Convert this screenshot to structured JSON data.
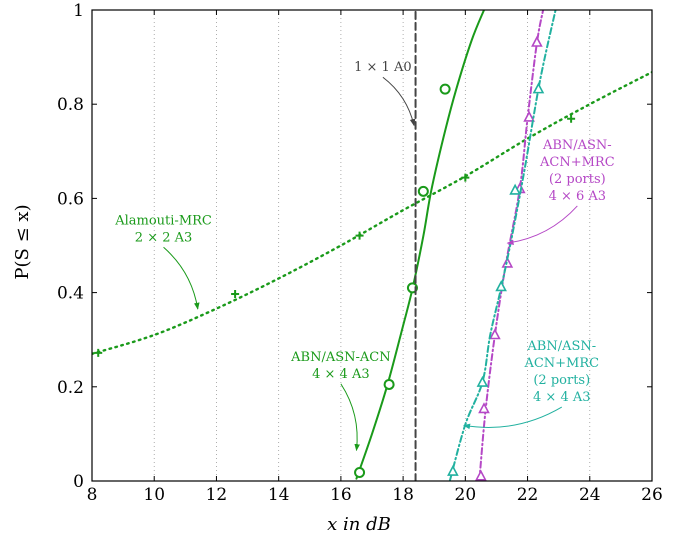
{
  "chart_data": {
    "type": "line",
    "xlabel": "x in dB",
    "ylabel": "P(S ≤ x)",
    "xlim": [
      8,
      26
    ],
    "ylim": [
      0,
      1
    ],
    "xticks": [
      8,
      10,
      12,
      14,
      16,
      18,
      20,
      22,
      24,
      26
    ],
    "yticks": [
      0,
      0.2,
      0.4,
      0.6,
      0.8,
      1
    ],
    "xtick_labels": [
      "8",
      "10",
      "12",
      "14",
      "16",
      "18",
      "20",
      "22",
      "24",
      "26"
    ],
    "ytick_labels": [
      "0",
      "0.2",
      "0.4",
      "0.6",
      "0.8",
      "1"
    ],
    "grid": "vertical dotted",
    "series": [
      {
        "key": "alamouti",
        "color": "#1a9a1a",
        "style": "dotted",
        "marker": "plus",
        "curve": [
          [
            8,
            0.27
          ],
          [
            10,
            0.31
          ],
          [
            12,
            0.366
          ],
          [
            14,
            0.43
          ],
          [
            16,
            0.5
          ],
          [
            18,
            0.575
          ],
          [
            20,
            0.647
          ],
          [
            22,
            0.727
          ],
          [
            24,
            0.8
          ],
          [
            26,
            0.868
          ]
        ],
        "markers": [
          [
            8.2,
            0.272
          ],
          [
            12.6,
            0.397
          ],
          [
            16.6,
            0.521
          ],
          [
            20.0,
            0.644
          ],
          [
            23.4,
            0.769
          ]
        ]
      },
      {
        "key": "abn_acn",
        "color": "#1a9a1a",
        "style": "solid",
        "marker": "circle",
        "curve": [
          [
            16.5,
            0.005
          ],
          [
            17.0,
            0.1
          ],
          [
            17.5,
            0.205
          ],
          [
            18.0,
            0.33
          ],
          [
            18.3,
            0.408
          ],
          [
            18.65,
            0.52
          ],
          [
            18.9,
            0.615
          ],
          [
            19.3,
            0.73
          ],
          [
            19.7,
            0.83
          ],
          [
            20.2,
            0.935
          ],
          [
            20.6,
            1.0
          ]
        ],
        "markers": [
          [
            16.6,
            0.018
          ],
          [
            17.55,
            0.205
          ],
          [
            18.3,
            0.41
          ],
          [
            18.65,
            0.615
          ],
          [
            19.35,
            0.832
          ]
        ]
      },
      {
        "key": "abn_acn_mrc_4x6",
        "color": "#b548c6",
        "style": "dashdot",
        "marker": "triangle",
        "curve": [
          [
            20.45,
            0.0
          ],
          [
            20.65,
            0.15
          ],
          [
            20.95,
            0.31
          ],
          [
            21.3,
            0.46
          ],
          [
            21.75,
            0.62
          ],
          [
            22.0,
            0.77
          ],
          [
            22.3,
            0.93
          ],
          [
            22.5,
            1.0
          ]
        ],
        "markers": [
          [
            20.5,
            0.01
          ],
          [
            20.6,
            0.153
          ],
          [
            20.95,
            0.31
          ],
          [
            21.35,
            0.462
          ],
          [
            21.75,
            0.62
          ],
          [
            22.05,
            0.772
          ],
          [
            22.3,
            0.931
          ]
        ]
      },
      {
        "key": "abn_acn_mrc_4x4",
        "color": "#22b1a0",
        "style": "dashdot",
        "marker": "triangle",
        "curve": [
          [
            19.5,
            0.0
          ],
          [
            20.0,
            0.12
          ],
          [
            20.55,
            0.21
          ],
          [
            20.8,
            0.31
          ],
          [
            21.15,
            0.41
          ],
          [
            21.5,
            0.52
          ],
          [
            21.9,
            0.66
          ],
          [
            22.4,
            0.85
          ],
          [
            22.9,
            1.0
          ]
        ],
        "markers": [
          [
            19.6,
            0.02
          ],
          [
            20.55,
            0.209
          ],
          [
            21.15,
            0.412
          ],
          [
            21.6,
            0.617
          ],
          [
            22.35,
            0.832
          ]
        ]
      },
      {
        "key": "ref_1x1",
        "color": "#444444",
        "style": "dashed",
        "marker": "none",
        "curve": [
          [
            18.4,
            0.0
          ],
          [
            18.4,
            1.0
          ]
        ],
        "markers": []
      }
    ],
    "annotations": [
      {
        "key": "alamouti",
        "lines": [
          "Alamouti-MRC",
          "2 × 2  A3"
        ],
        "color": "#1a9a1a",
        "text_at": [
          10.3,
          0.545
        ],
        "arrow_to": [
          11.4,
          0.365
        ]
      },
      {
        "key": "abn_acn",
        "lines": [
          "ABN/ASN-ACN",
          "4 × 4  A3"
        ],
        "color": "#1a9a1a",
        "text_at": [
          16.0,
          0.255
        ],
        "arrow_to": [
          16.5,
          0.065
        ]
      },
      {
        "key": "mrc_4x6",
        "lines": [
          "ABN/ASN-",
          "ACN+MRC",
          "(2 ports)",
          "4 × 6  A3"
        ],
        "color": "#b548c6",
        "text_at": [
          23.6,
          0.705
        ],
        "arrow_to": [
          21.35,
          0.505
        ]
      },
      {
        "key": "mrc_4x4",
        "lines": [
          "ABN/ASN-",
          "ACN+MRC",
          "(2 ports)",
          "4 × 4  A3"
        ],
        "color": "#22b1a0",
        "text_at": [
          23.1,
          0.278
        ],
        "arrow_to": [
          19.95,
          0.118
        ]
      },
      {
        "key": "ref",
        "lines": [
          "1 × 1  A0"
        ],
        "color": "#444444",
        "text_at": [
          17.35,
          0.87
        ],
        "arrow_to": [
          18.35,
          0.755
        ]
      }
    ]
  }
}
